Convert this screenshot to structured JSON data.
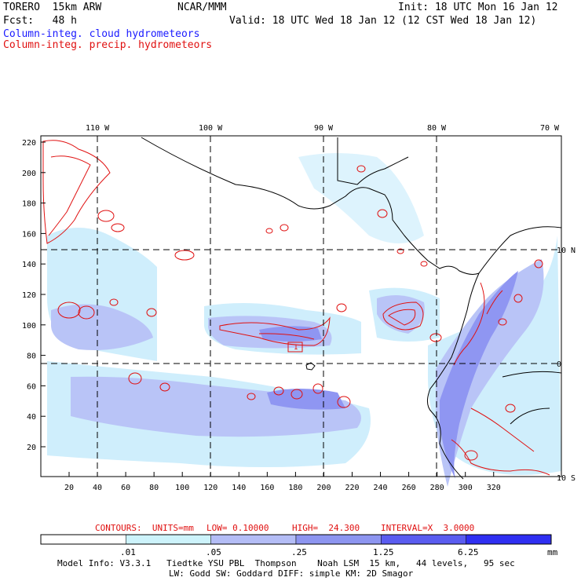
{
  "header": {
    "model": "TORERO  15km ARW",
    "center": "NCAR/MMM",
    "init": "Init: 18 UTC Mon 16 Jan 12",
    "fcst": "Fcst:   48 h",
    "valid": "Valid: 18 UTC Wed 18 Jan 12 (12 CST Wed 18 Jan 12)",
    "field1": "Column-integ. cloud hydrometeors",
    "field2": "Column-integ. precip. hydrometeors"
  },
  "map": {
    "top_lon_labels": [
      "110 W",
      "100 W",
      "90 W",
      "80 W",
      "70 W"
    ],
    "right_lat_labels": [
      "10 N",
      "0",
      "10 S"
    ],
    "y_ticks": [
      "220",
      "200",
      "180",
      "160",
      "140",
      "120",
      "100",
      "80",
      "60",
      "40",
      "20"
    ],
    "x_ticks": [
      "20",
      "40",
      "60",
      "80",
      "100",
      "120",
      "140",
      "160",
      "180",
      "200",
      "220",
      "240",
      "260",
      "280",
      "300",
      "320"
    ],
    "max_marker": "1",
    "colors": {
      "cloud_shade_light": "#cfeefc",
      "cloud_shade_med": "#b9c4f7",
      "cloud_shade_dark": "#8f96f2",
      "precip_contour": "#e01010",
      "coast": "#000000"
    }
  },
  "contour_info": {
    "contours": "CONTOURS:  UNITS=mm",
    "low": "LOW= 0.10000",
    "high": "HIGH=  24.300",
    "interval": "INTERVAL=X  3.0000"
  },
  "colorbar": {
    "labels": [
      ".01",
      ".05",
      ".25",
      "1.25",
      "6.25"
    ],
    "unit": "mm",
    "colors": [
      "#ffffff",
      "#cdf3fb",
      "#b4bdf6",
      "#8d95f0",
      "#5a5cf0",
      "#2f2ff2"
    ]
  },
  "footer": {
    "line1": "Model Info: V3.3.1   Tiedtke YSU PBL  Thompson    Noah LSM  15 km,   44 levels,   95 sec",
    "line2": "LW: Godd SW: Goddard DIFF: simple KM: 2D Smagor"
  }
}
